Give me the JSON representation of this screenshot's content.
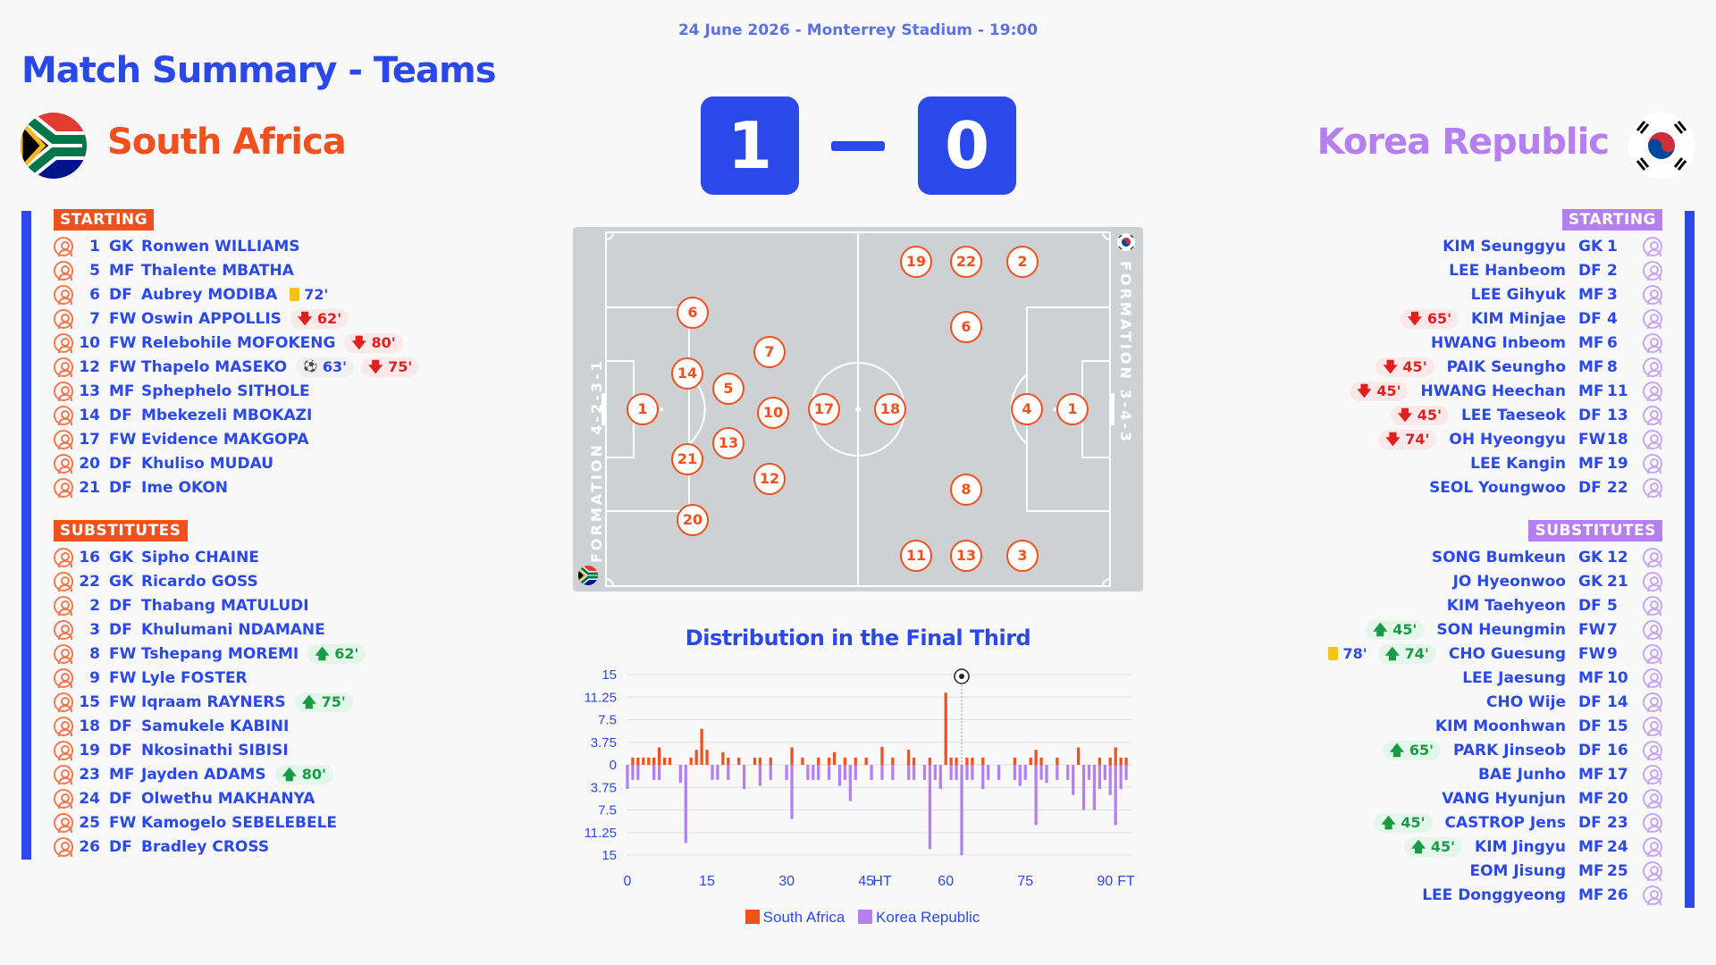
{
  "match_info": "24 June 2026 - Monterrey Stadium - 19:00",
  "page_title": "Match Summary - Teams",
  "score": {
    "home": "1",
    "away": "0"
  },
  "home": {
    "name": "South Africa",
    "color": "#f0501e",
    "formation": "FORMATION 4-2-3-1",
    "starting_label": "STARTING",
    "subs_label": "SUBSTITUTES",
    "starting": [
      {
        "num": "1",
        "pos": "GK",
        "name": "Ronwen WILLIAMS",
        "events": []
      },
      {
        "num": "5",
        "pos": "MF",
        "name": "Thalente MBATHA",
        "events": []
      },
      {
        "num": "6",
        "pos": "DF",
        "name": "Aubrey MODIBA",
        "events": [
          {
            "type": "card",
            "text": "72'"
          }
        ]
      },
      {
        "num": "7",
        "pos": "FW",
        "name": "Oswin APPOLLIS",
        "events": [
          {
            "type": "out",
            "text": "62'"
          }
        ]
      },
      {
        "num": "10",
        "pos": "FW",
        "name": "Relebohile MOFOKENG",
        "events": [
          {
            "type": "out",
            "text": "80'"
          }
        ]
      },
      {
        "num": "12",
        "pos": "FW",
        "name": "Thapelo MASEKO",
        "events": [
          {
            "type": "goal",
            "text": "63'"
          },
          {
            "type": "out",
            "text": "75'"
          }
        ]
      },
      {
        "num": "13",
        "pos": "MF",
        "name": "Sphephelo SITHOLE",
        "events": []
      },
      {
        "num": "14",
        "pos": "DF",
        "name": "Mbekezeli MBOKAZI",
        "events": []
      },
      {
        "num": "17",
        "pos": "FW",
        "name": "Evidence MAKGOPA",
        "events": []
      },
      {
        "num": "20",
        "pos": "DF",
        "name": "Khuliso MUDAU",
        "events": []
      },
      {
        "num": "21",
        "pos": "DF",
        "name": "Ime OKON",
        "events": []
      }
    ],
    "substitutes": [
      {
        "num": "16",
        "pos": "GK",
        "name": "Sipho CHAINE",
        "events": []
      },
      {
        "num": "22",
        "pos": "GK",
        "name": "Ricardo GOSS",
        "events": []
      },
      {
        "num": "2",
        "pos": "DF",
        "name": "Thabang MATULUDI",
        "events": []
      },
      {
        "num": "3",
        "pos": "DF",
        "name": "Khulumani NDAMANE",
        "events": []
      },
      {
        "num": "8",
        "pos": "FW",
        "name": "Tshepang MOREMI",
        "events": [
          {
            "type": "in",
            "text": "62'"
          }
        ]
      },
      {
        "num": "9",
        "pos": "FW",
        "name": "Lyle FOSTER",
        "events": []
      },
      {
        "num": "15",
        "pos": "FW",
        "name": "Iqraam RAYNERS",
        "events": [
          {
            "type": "in",
            "text": "75'"
          }
        ]
      },
      {
        "num": "18",
        "pos": "DF",
        "name": "Samukele KABINI",
        "events": []
      },
      {
        "num": "19",
        "pos": "DF",
        "name": "Nkosinathi SIBISI",
        "events": []
      },
      {
        "num": "23",
        "pos": "MF",
        "name": "Jayden ADAMS",
        "events": [
          {
            "type": "in",
            "text": "80'"
          }
        ]
      },
      {
        "num": "24",
        "pos": "DF",
        "name": "Olwethu MAKHANYA",
        "events": []
      },
      {
        "num": "25",
        "pos": "FW",
        "name": "Kamogelo SEBELEBELE",
        "events": []
      },
      {
        "num": "26",
        "pos": "DF",
        "name": "Bradley CROSS",
        "events": []
      }
    ]
  },
  "away": {
    "name": "Korea Republic",
    "color": "#b57ff0",
    "formation": "FORMATION 3-4-3",
    "starting_label": "STARTING",
    "subs_label": "SUBSTITUTES",
    "starting": [
      {
        "num": "1",
        "pos": "GK",
        "name": "KIM Seunggyu",
        "events": []
      },
      {
        "num": "2",
        "pos": "DF",
        "name": "LEE Hanbeom",
        "events": []
      },
      {
        "num": "3",
        "pos": "MF",
        "name": "LEE Gihyuk",
        "events": []
      },
      {
        "num": "4",
        "pos": "DF",
        "name": "KIM Minjae",
        "events": [
          {
            "type": "out",
            "text": "65'"
          }
        ]
      },
      {
        "num": "6",
        "pos": "MF",
        "name": "HWANG Inbeom",
        "events": []
      },
      {
        "num": "8",
        "pos": "MF",
        "name": "PAIK Seungho",
        "events": [
          {
            "type": "out",
            "text": "45'"
          }
        ]
      },
      {
        "num": "11",
        "pos": "MF",
        "name": "HWANG Heechan",
        "events": [
          {
            "type": "out",
            "text": "45'"
          }
        ]
      },
      {
        "num": "13",
        "pos": "DF",
        "name": "LEE Taeseok",
        "events": [
          {
            "type": "out",
            "text": "45'"
          }
        ]
      },
      {
        "num": "18",
        "pos": "FW",
        "name": "OH Hyeongyu",
        "events": [
          {
            "type": "out",
            "text": "74'"
          }
        ]
      },
      {
        "num": "19",
        "pos": "MF",
        "name": "LEE Kangin",
        "events": []
      },
      {
        "num": "22",
        "pos": "DF",
        "name": "SEOL Youngwoo",
        "events": []
      }
    ],
    "substitutes": [
      {
        "num": "12",
        "pos": "GK",
        "name": "SONG Bumkeun",
        "events": []
      },
      {
        "num": "21",
        "pos": "GK",
        "name": "JO Hyeonwoo",
        "events": []
      },
      {
        "num": "5",
        "pos": "DF",
        "name": "KIM Taehyeon",
        "events": []
      },
      {
        "num": "7",
        "pos": "FW",
        "name": "SON Heungmin",
        "events": [
          {
            "type": "in",
            "text": "45'"
          }
        ]
      },
      {
        "num": "9",
        "pos": "FW",
        "name": "CHO Guesung",
        "events": [
          {
            "type": "card",
            "text": "78'"
          },
          {
            "type": "in",
            "text": "74'"
          }
        ]
      },
      {
        "num": "10",
        "pos": "MF",
        "name": "LEE Jaesung",
        "events": []
      },
      {
        "num": "14",
        "pos": "DF",
        "name": "CHO Wije",
        "events": []
      },
      {
        "num": "15",
        "pos": "DF",
        "name": "KIM Moonhwan",
        "events": []
      },
      {
        "num": "16",
        "pos": "DF",
        "name": "PARK Jinseob",
        "events": [
          {
            "type": "in",
            "text": "65'"
          }
        ]
      },
      {
        "num": "17",
        "pos": "MF",
        "name": "BAE Junho",
        "events": []
      },
      {
        "num": "20",
        "pos": "MF",
        "name": "VANG Hyunjun",
        "events": []
      },
      {
        "num": "23",
        "pos": "DF",
        "name": "CASTROP Jens",
        "events": [
          {
            "type": "in",
            "text": "45'"
          }
        ]
      },
      {
        "num": "24",
        "pos": "MF",
        "name": "KIM Jingyu",
        "events": [
          {
            "type": "in",
            "text": "45'"
          }
        ]
      },
      {
        "num": "25",
        "pos": "MF",
        "name": "EOM Jisung",
        "events": []
      },
      {
        "num": "26",
        "pos": "MF",
        "name": "LEE Donggyeong",
        "events": []
      }
    ]
  },
  "chart_data": {
    "type": "bar",
    "title": "Distribution in the Final Third",
    "xlim": [
      0,
      95
    ],
    "ylim": [
      -15,
      15
    ],
    "x_ticks": [
      {
        "value": 0,
        "label": "0"
      },
      {
        "value": 15,
        "label": "15"
      },
      {
        "value": 30,
        "label": "30"
      },
      {
        "value": 45,
        "label": "45"
      },
      {
        "value": 48,
        "label": "HT"
      },
      {
        "value": 60,
        "label": "60"
      },
      {
        "value": 75,
        "label": "75"
      },
      {
        "value": 90,
        "label": "90"
      },
      {
        "value": 94,
        "label": "FT"
      }
    ],
    "y_ticks": [
      {
        "value": 15,
        "label": "15"
      },
      {
        "value": 11.25,
        "label": "11.25"
      },
      {
        "value": 7.5,
        "label": "7.5"
      },
      {
        "value": 3.75,
        "label": "3.75"
      },
      {
        "value": 0,
        "label": "0"
      },
      {
        "value": -3.75,
        "label": "3.75"
      },
      {
        "value": -7.5,
        "label": "7.5"
      },
      {
        "value": -11.25,
        "label": "11.25"
      },
      {
        "value": -15,
        "label": "15"
      }
    ],
    "grid": true,
    "goal_marker": {
      "minute": 63
    },
    "series": [
      {
        "name": "South Africa",
        "color": "#f0501e",
        "minutes": [
          1,
          2,
          3,
          4,
          5,
          6,
          7,
          8,
          12,
          13,
          14,
          15,
          18,
          19,
          21,
          24,
          25,
          27,
          31,
          33,
          36,
          38,
          39,
          41,
          43,
          45,
          48,
          50,
          53,
          54,
          57,
          60,
          61,
          62,
          64,
          65,
          67,
          73,
          76,
          77,
          78,
          81,
          85,
          89,
          91,
          92,
          93,
          94
        ],
        "values": [
          1.2,
          1.2,
          1.2,
          1.2,
          1.2,
          2.9,
          1.2,
          1.2,
          1.2,
          2.5,
          6,
          2.5,
          2.1,
          1.2,
          1.2,
          1.2,
          1.2,
          1.2,
          2.9,
          1.2,
          1.2,
          1.2,
          2.1,
          1.2,
          1.2,
          1.2,
          3,
          1.2,
          2.5,
          1.2,
          1.2,
          12,
          1.2,
          1.2,
          1.2,
          1.2,
          1.2,
          1.2,
          1.2,
          2.5,
          1.2,
          1.2,
          2.9,
          1.2,
          1.2,
          2.9,
          1.2,
          1.2
        ]
      },
      {
        "name": "Korea Republic",
        "color": "#b57ff0",
        "minutes": [
          0,
          1,
          2,
          5,
          6,
          10,
          11,
          16,
          17,
          19,
          22,
          25,
          27,
          30,
          31,
          34,
          35,
          36,
          38,
          40,
          41,
          42,
          43,
          46,
          48,
          50,
          53,
          54,
          56,
          57,
          58,
          59,
          61,
          62,
          63,
          64,
          65,
          67,
          68,
          70,
          73,
          74,
          75,
          77,
          78,
          79,
          81,
          83,
          84,
          86,
          87,
          88,
          89,
          90,
          91,
          92,
          93,
          94
        ],
        "values": [
          -4,
          -2.5,
          -2.5,
          -2.5,
          -2.5,
          -3,
          -13,
          -2.5,
          -2.5,
          -2.5,
          -4,
          -3.5,
          -2.5,
          -2.5,
          -9,
          -2.5,
          -2.5,
          -2.5,
          -2.5,
          -3.5,
          -2.5,
          -6,
          -2.5,
          -2.5,
          -2.5,
          -2.5,
          -2.5,
          -2.5,
          -2.5,
          -14,
          -2.5,
          -4,
          -2.5,
          -2.5,
          -15,
          -2.5,
          -2.5,
          -4,
          -2.5,
          -2.5,
          -2.5,
          -3.5,
          -2.5,
          -10,
          -2.5,
          -3,
          -2.5,
          -2.5,
          -5,
          -7.5,
          -2.5,
          -7.5,
          -4,
          -2.5,
          -5,
          -10,
          -4,
          -2.5
        ]
      }
    ],
    "legend": "bottom-center"
  }
}
